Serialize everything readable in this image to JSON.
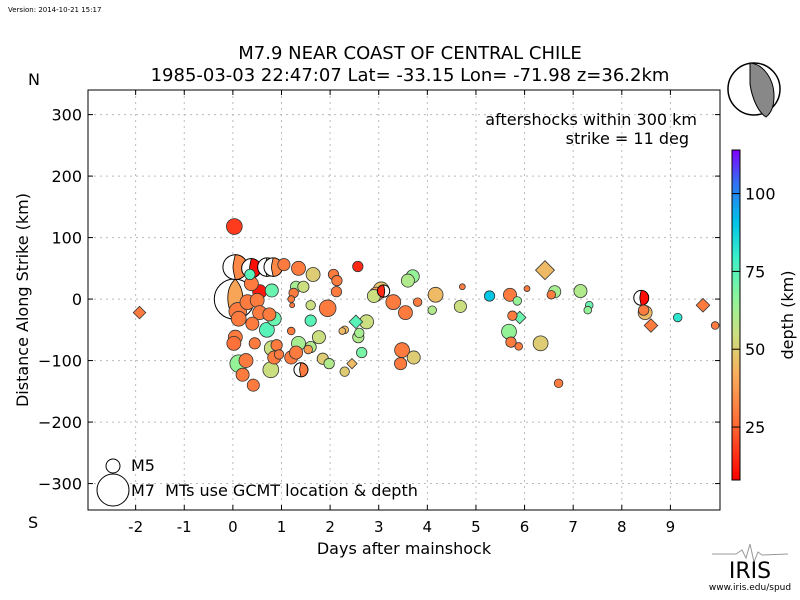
{
  "version_text": "Version: 2014-10-21 15:17",
  "header": {
    "title": "M7.9 NEAR COAST OF CENTRAL CHILE",
    "subtitle": "1985-03-03 22:47:07 Lat= -33.15 Lon= -71.98 z=36.2km"
  },
  "direction_labels": {
    "north": "N",
    "south": "S"
  },
  "logo": {
    "name": "IRIS",
    "url_text": "www.iris.edu/spud"
  },
  "chart_data": {
    "type": "scatter",
    "title": "M7.9 NEAR COAST OF CENTRAL CHILE",
    "subtitle": "1985-03-03 22:47:07 Lat= -33.15 Lon= -71.98 z=36.2km",
    "xlabel": "Days after mainshock",
    "ylabel": "Distance Along Strike (km)",
    "xlim": [
      -2.98,
      10.02
    ],
    "ylim": [
      -343,
      340
    ],
    "xticks": [
      -2,
      -1,
      0,
      1,
      2,
      3,
      4,
      5,
      6,
      7,
      8,
      9
    ],
    "yticks": [
      -300,
      -200,
      -100,
      0,
      100,
      200,
      300
    ],
    "ytick_labels": [
      "−300",
      "−200",
      "−100",
      "0",
      "100",
      "200",
      "300"
    ],
    "grid": true,
    "annotations": [
      "aftershocks within 300 km",
      "strike = 11 deg"
    ],
    "legend": {
      "placement": "bottom-left",
      "entries": [
        {
          "label": "M5",
          "magnitude": 5
        },
        {
          "label": "M7  MTs use GCMT location & depth",
          "magnitude": 7
        }
      ]
    },
    "colorbar": {
      "label": "depth (km)",
      "range": [
        8,
        114
      ],
      "ticks": [
        25,
        50,
        75,
        100
      ],
      "colormap": "rainbow"
    },
    "marker_kinds": {
      "c": "circle",
      "d": "diamond (foreshock/other)",
      "m": "moment tensor beachball"
    },
    "points": [
      {
        "x": -1.92,
        "y": -22,
        "depth": 30,
        "mag": 4.6,
        "kind": "d"
      },
      {
        "x": 0.03,
        "y": 118,
        "depth": 18,
        "mag": 5.2,
        "kind": "c"
      },
      {
        "x": 0.05,
        "y": 52,
        "depth": 33,
        "mag": 6.2,
        "kind": "m",
        "fill_side": "right"
      },
      {
        "x": 0.38,
        "y": 50,
        "depth": 10,
        "mag": 5.6,
        "kind": "m",
        "fill_side": "right"
      },
      {
        "x": 0.7,
        "y": 52,
        "depth": 60,
        "mag": 5.5,
        "kind": "m",
        "fill_side": "right"
      },
      {
        "x": 0.83,
        "y": 52,
        "depth": 33,
        "mag": 5.5,
        "kind": "m",
        "fill_side": "right"
      },
      {
        "x": 0.03,
        "y": 0,
        "depth": 40,
        "mag": 7.9,
        "kind": "m",
        "fill_side": "center"
      },
      {
        "x": 1.05,
        "y": 56,
        "depth": 30,
        "mag": 4.8,
        "kind": "c"
      },
      {
        "x": 0.55,
        "y": 12,
        "depth": 12,
        "mag": 5.0,
        "kind": "c"
      },
      {
        "x": 0.38,
        "y": 25,
        "depth": 30,
        "mag": 5.0,
        "kind": "c"
      },
      {
        "x": 0.8,
        "y": 14,
        "depth": 72,
        "mag": 4.9,
        "kind": "c"
      },
      {
        "x": 0.35,
        "y": 40,
        "depth": 75,
        "mag": 4.6,
        "kind": "c"
      },
      {
        "x": 0.1,
        "y": -20,
        "depth": 30,
        "mag": 5.4,
        "kind": "c"
      },
      {
        "x": 0.3,
        "y": -5,
        "depth": 30,
        "mag": 5.1,
        "kind": "c"
      },
      {
        "x": 0.5,
        "y": -2,
        "depth": 30,
        "mag": 5.0,
        "kind": "c"
      },
      {
        "x": 0.55,
        "y": -22,
        "depth": 30,
        "mag": 5.0,
        "kind": "c"
      },
      {
        "x": 0.12,
        "y": -32,
        "depth": 30,
        "mag": 5.1,
        "kind": "c"
      },
      {
        "x": 0.4,
        "y": -40,
        "depth": 30,
        "mag": 4.9,
        "kind": "c"
      },
      {
        "x": 0.75,
        "y": -25,
        "depth": 30,
        "mag": 4.9,
        "kind": "c"
      },
      {
        "x": 0.7,
        "y": -50,
        "depth": 75,
        "mag": 5.1,
        "kind": "c"
      },
      {
        "x": 0.05,
        "y": -62,
        "depth": 30,
        "mag": 5.0,
        "kind": "c"
      },
      {
        "x": 0.02,
        "y": -72,
        "depth": 28,
        "mag": 5.0,
        "kind": "c"
      },
      {
        "x": 0.45,
        "y": -72,
        "depth": 30,
        "mag": 4.7,
        "kind": "c"
      },
      {
        "x": 0.12,
        "y": -105,
        "depth": 65,
        "mag": 5.4,
        "kind": "c"
      },
      {
        "x": 0.27,
        "y": -100,
        "depth": 30,
        "mag": 5.0,
        "kind": "c"
      },
      {
        "x": 0.2,
        "y": -123,
        "depth": 30,
        "mag": 4.9,
        "kind": "c"
      },
      {
        "x": 0.42,
        "y": -140,
        "depth": 30,
        "mag": 4.8,
        "kind": "c"
      },
      {
        "x": 0.8,
        "y": -80,
        "depth": 55,
        "mag": 5.1,
        "kind": "c"
      },
      {
        "x": 0.78,
        "y": -115,
        "depth": 55,
        "mag": 5.2,
        "kind": "c"
      },
      {
        "x": 0.85,
        "y": -95,
        "depth": 30,
        "mag": 4.9,
        "kind": "c"
      },
      {
        "x": 0.9,
        "y": -75,
        "depth": 30,
        "mag": 4.7,
        "kind": "c"
      },
      {
        "x": 0.95,
        "y": -90,
        "depth": 30,
        "mag": 4.5,
        "kind": "c"
      },
      {
        "x": 1.2,
        "y": -95,
        "depth": 30,
        "mag": 4.9,
        "kind": "c"
      },
      {
        "x": 1.4,
        "y": -115,
        "depth": 30,
        "mag": 5.0,
        "kind": "m",
        "fill_side": "right"
      },
      {
        "x": 1.35,
        "y": -72,
        "depth": 62,
        "mag": 5.0,
        "kind": "c"
      },
      {
        "x": 1.3,
        "y": -87,
        "depth": 30,
        "mag": 4.9,
        "kind": "c"
      },
      {
        "x": 1.6,
        "y": -78,
        "depth": 60,
        "mag": 4.7,
        "kind": "c"
      },
      {
        "x": 1.55,
        "y": -82,
        "depth": 38,
        "mag": 4.4,
        "kind": "c"
      },
      {
        "x": 1.77,
        "y": -62,
        "depth": 55,
        "mag": 4.9,
        "kind": "c"
      },
      {
        "x": 1.85,
        "y": -97,
        "depth": 50,
        "mag": 4.7,
        "kind": "c"
      },
      {
        "x": 1.98,
        "y": -105,
        "depth": 60,
        "mag": 4.6,
        "kind": "c"
      },
      {
        "x": 2.3,
        "y": -118,
        "depth": 50,
        "mag": 4.5,
        "kind": "c"
      },
      {
        "x": 2.45,
        "y": -105,
        "depth": 45,
        "mag": 4.4,
        "kind": "d"
      },
      {
        "x": 2.65,
        "y": -87,
        "depth": 70,
        "mag": 4.6,
        "kind": "c"
      },
      {
        "x": 2.58,
        "y": -62,
        "depth": 60,
        "mag": 4.7,
        "kind": "c"
      },
      {
        "x": 2.6,
        "y": -55,
        "depth": 62,
        "mag": 4.5,
        "kind": "c"
      },
      {
        "x": 2.25,
        "y": -52,
        "depth": 45,
        "mag": 4.2,
        "kind": "c"
      },
      {
        "x": 1.2,
        "y": -52,
        "depth": 30,
        "mag": 4.3,
        "kind": "c"
      },
      {
        "x": 0.85,
        "y": -32,
        "depth": 72,
        "mag": 5.0,
        "kind": "c"
      },
      {
        "x": 1.6,
        "y": -35,
        "depth": 75,
        "mag": 4.7,
        "kind": "c"
      },
      {
        "x": 1.6,
        "y": -10,
        "depth": 55,
        "mag": 4.5,
        "kind": "c"
      },
      {
        "x": 1.3,
        "y": 20,
        "depth": 62,
        "mag": 4.7,
        "kind": "c"
      },
      {
        "x": 1.45,
        "y": 20,
        "depth": 55,
        "mag": 4.7,
        "kind": "c"
      },
      {
        "x": 1.25,
        "y": 10,
        "depth": 30,
        "mag": 4.5,
        "kind": "c"
      },
      {
        "x": 1.2,
        "y": 0,
        "depth": 30,
        "mag": 4.2,
        "kind": "c"
      },
      {
        "x": 1.22,
        "y": -10,
        "depth": 30,
        "mag": 4.0,
        "kind": "c"
      },
      {
        "x": 1.35,
        "y": 50,
        "depth": 30,
        "mag": 5.0,
        "kind": "c"
      },
      {
        "x": 1.65,
        "y": 40,
        "depth": 50,
        "mag": 5.0,
        "kind": "c"
      },
      {
        "x": 2.07,
        "y": 40,
        "depth": 30,
        "mag": 4.6,
        "kind": "c"
      },
      {
        "x": 2.14,
        "y": 30,
        "depth": 30,
        "mag": 4.6,
        "kind": "c"
      },
      {
        "x": 2.13,
        "y": 12,
        "depth": 30,
        "mag": 4.6,
        "kind": "c"
      },
      {
        "x": 2.57,
        "y": 53,
        "depth": 15,
        "mag": 4.6,
        "kind": "c"
      },
      {
        "x": 1.95,
        "y": -15,
        "depth": 30,
        "mag": 5.3,
        "kind": "c"
      },
      {
        "x": 2.9,
        "y": 5,
        "depth": 55,
        "mag": 4.9,
        "kind": "c"
      },
      {
        "x": 3.05,
        "y": 15,
        "depth": 48,
        "mag": 5.2,
        "kind": "c"
      },
      {
        "x": 3.1,
        "y": 13,
        "depth": 15,
        "mag": 4.8,
        "kind": "m",
        "fill_side": "left"
      },
      {
        "x": 2.95,
        "y": 8,
        "depth": 40,
        "mag": 5.0,
        "kind": "c"
      },
      {
        "x": 3.3,
        "y": -5,
        "depth": 30,
        "mag": 5.1,
        "kind": "c"
      },
      {
        "x": 3.55,
        "y": -22,
        "depth": 30,
        "mag": 5.0,
        "kind": "c"
      },
      {
        "x": 3.7,
        "y": 37,
        "depth": 65,
        "mag": 4.9,
        "kind": "c"
      },
      {
        "x": 3.6,
        "y": 30,
        "depth": 60,
        "mag": 4.9,
        "kind": "c"
      },
      {
        "x": 3.8,
        "y": -5,
        "depth": 30,
        "mag": 4.4,
        "kind": "c"
      },
      {
        "x": 4.17,
        "y": 7,
        "depth": 45,
        "mag": 5.1,
        "kind": "c"
      },
      {
        "x": 4.1,
        "y": -18,
        "depth": 60,
        "mag": 4.4,
        "kind": "c"
      },
      {
        "x": 2.75,
        "y": -37,
        "depth": 55,
        "mag": 5.0,
        "kind": "c"
      },
      {
        "x": 2.3,
        "y": -50,
        "depth": 45,
        "mag": 4.3,
        "kind": "c"
      },
      {
        "x": 3.48,
        "y": -83,
        "depth": 30,
        "mag": 5.1,
        "kind": "c"
      },
      {
        "x": 3.72,
        "y": -95,
        "depth": 50,
        "mag": 4.9,
        "kind": "c"
      },
      {
        "x": 3.45,
        "y": -105,
        "depth": 30,
        "mag": 4.8,
        "kind": "c"
      },
      {
        "x": 2.53,
        "y": -37,
        "depth": 75,
        "mag": 4.7,
        "kind": "d"
      },
      {
        "x": 4.72,
        "y": 20,
        "depth": 30,
        "mag": 4.1,
        "kind": "c"
      },
      {
        "x": 4.68,
        "y": -12,
        "depth": 55,
        "mag": 4.8,
        "kind": "c"
      },
      {
        "x": 5.28,
        "y": 5,
        "depth": 90,
        "mag": 4.6,
        "kind": "c"
      },
      {
        "x": 5.7,
        "y": 7,
        "depth": 30,
        "mag": 4.9,
        "kind": "c"
      },
      {
        "x": 5.85,
        "y": -3,
        "depth": 65,
        "mag": 4.4,
        "kind": "c"
      },
      {
        "x": 5.75,
        "y": -27,
        "depth": 30,
        "mag": 4.5,
        "kind": "c"
      },
      {
        "x": 5.9,
        "y": -30,
        "depth": 72,
        "mag": 4.6,
        "kind": "d"
      },
      {
        "x": 5.68,
        "y": -53,
        "depth": 65,
        "mag": 5.1,
        "kind": "c"
      },
      {
        "x": 5.72,
        "y": -70,
        "depth": 30,
        "mag": 4.6,
        "kind": "c"
      },
      {
        "x": 5.88,
        "y": -77,
        "depth": 30,
        "mag": 4.3,
        "kind": "c"
      },
      {
        "x": 6.05,
        "y": 17,
        "depth": 30,
        "mag": 4.1,
        "kind": "c"
      },
      {
        "x": 6.42,
        "y": 47,
        "depth": 45,
        "mag": 5.2,
        "kind": "d"
      },
      {
        "x": 6.33,
        "y": -72,
        "depth": 50,
        "mag": 5.1,
        "kind": "c"
      },
      {
        "x": 6.55,
        "y": 7,
        "depth": 30,
        "mag": 4.4,
        "kind": "c"
      },
      {
        "x": 6.62,
        "y": 12,
        "depth": 62,
        "mag": 4.8,
        "kind": "c"
      },
      {
        "x": 6.7,
        "y": -137,
        "depth": 30,
        "mag": 4.4,
        "kind": "c"
      },
      {
        "x": 7.15,
        "y": 13,
        "depth": 60,
        "mag": 4.9,
        "kind": "c"
      },
      {
        "x": 7.33,
        "y": -10,
        "depth": 72,
        "mag": 4.3,
        "kind": "c"
      },
      {
        "x": 7.3,
        "y": -18,
        "depth": 65,
        "mag": 4.3,
        "kind": "c"
      },
      {
        "x": 8.4,
        "y": 2,
        "depth": 10,
        "mag": 5.1,
        "kind": "m",
        "fill_side": "right"
      },
      {
        "x": 8.48,
        "y": -22,
        "depth": 45,
        "mag": 5.0,
        "kind": "c"
      },
      {
        "x": 8.45,
        "y": -18,
        "depth": 30,
        "mag": 4.6,
        "kind": "c"
      },
      {
        "x": 8.6,
        "y": -43,
        "depth": 30,
        "mag": 4.7,
        "kind": "d"
      },
      {
        "x": 9.15,
        "y": -30,
        "depth": 82,
        "mag": 4.4,
        "kind": "c"
      },
      {
        "x": 9.67,
        "y": -10,
        "depth": 30,
        "mag": 4.7,
        "kind": "d"
      },
      {
        "x": 9.92,
        "y": -43,
        "depth": 30,
        "mag": 4.3,
        "kind": "c"
      }
    ]
  }
}
